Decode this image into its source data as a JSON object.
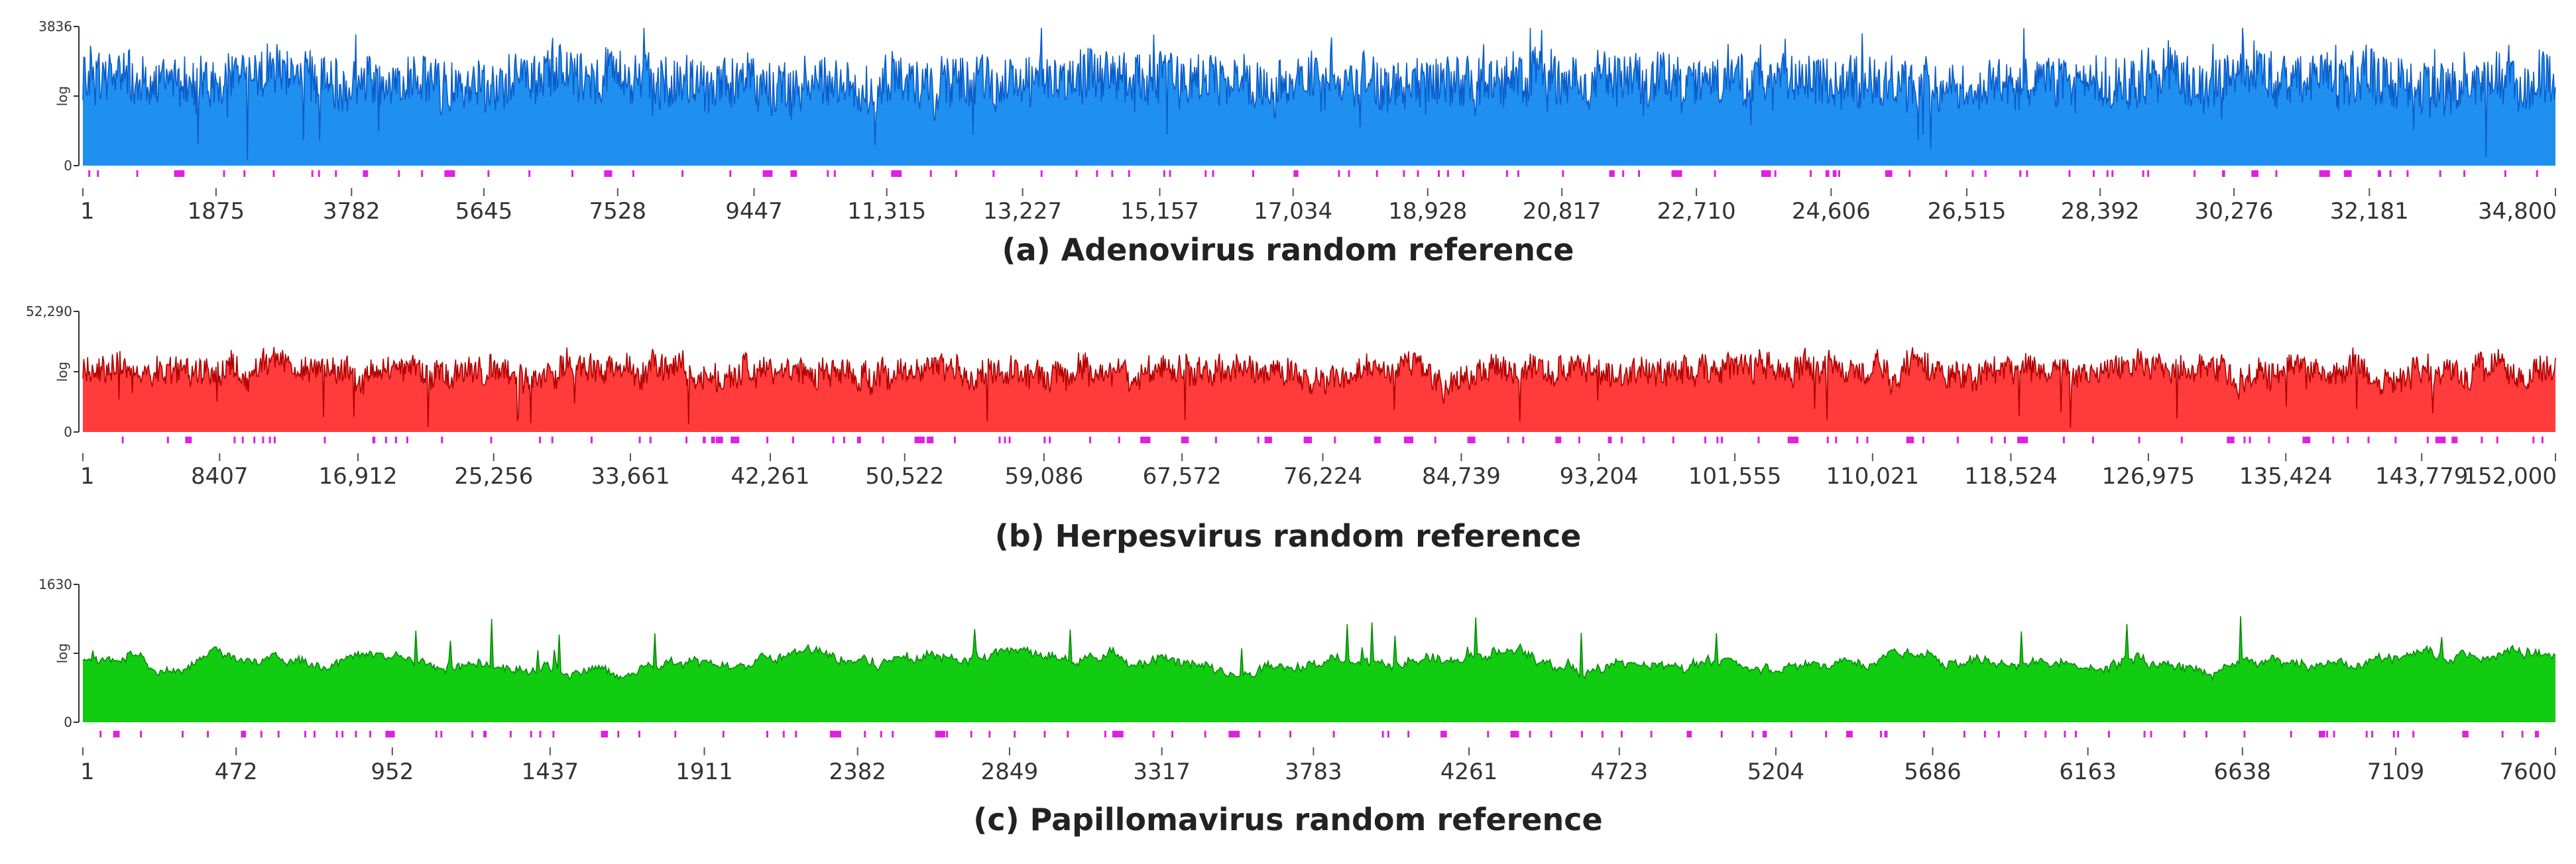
{
  "chart_data": [
    {
      "type": "area",
      "title": "(a) Adenovirus random reference",
      "ylabel": "log",
      "y_max_label": "3836",
      "y_min_label": "0",
      "y_scale": "log",
      "ylim": [
        0,
        3836
      ],
      "x_ticks": [
        1,
        1875,
        3782,
        5645,
        7528,
        9447,
        11315,
        13227,
        15157,
        17034,
        18928,
        20817,
        22710,
        24606,
        26515,
        28392,
        30276,
        32181,
        34800
      ],
      "x_tick_labels": [
        "1",
        "1875",
        "3782",
        "5645",
        "7528",
        "9447",
        "11,315",
        "13,227",
        "15,157",
        "17,034",
        "18,928",
        "20,817",
        "22,710",
        "24,606",
        "26,515",
        "28,392",
        "30,276",
        "32,181",
        "34,800"
      ],
      "xlim": [
        1,
        34800
      ],
      "series_color": "#1f8ff0",
      "line_color": "#0a5cc8",
      "marker_color": "#e020e0",
      "profile_style": "spiky",
      "coverage_base": 0.55,
      "coverage_variation": 0.17,
      "seed": 11
    },
    {
      "type": "area",
      "title": "(b) Herpesvirus random reference",
      "ylabel": "log",
      "y_max_label": "52,290",
      "y_min_label": "0",
      "y_scale": "log",
      "ylim": [
        0,
        52290
      ],
      "x_ticks": [
        1,
        8407,
        16912,
        25256,
        33661,
        42261,
        50522,
        59086,
        67572,
        76224,
        84739,
        93204,
        101555,
        110021,
        118524,
        126975,
        135424,
        143779,
        152000
      ],
      "x_tick_labels": [
        "1",
        "8407",
        "16,912",
        "25,256",
        "33,661",
        "42,261",
        "50,522",
        "59,086",
        "67,572",
        "76,224",
        "84,739",
        "93,204",
        "101,555",
        "110,021",
        "118,524",
        "126,975",
        "135,424",
        "143,779",
        "152,000"
      ],
      "xlim": [
        1,
        152000
      ],
      "series_color": "#ff3b3b",
      "line_color": "#b00000",
      "marker_color": "#e020e0",
      "profile_style": "dense",
      "coverage_base": 0.5,
      "coverage_variation": 0.12,
      "seed": 23
    },
    {
      "type": "area",
      "title": "(c) Papillomavirus random reference",
      "ylabel": "log",
      "y_max_label": "1630",
      "y_min_label": "0",
      "y_scale": "log",
      "ylim": [
        0,
        1630
      ],
      "x_ticks": [
        1,
        472,
        952,
        1437,
        1911,
        2382,
        2849,
        3317,
        3783,
        4261,
        4723,
        5204,
        5686,
        6163,
        6638,
        7109,
        7600
      ],
      "x_tick_labels": [
        "1",
        "472",
        "952",
        "1437",
        "1911",
        "2382",
        "2849",
        "3317",
        "3783",
        "4261",
        "4723",
        "5204",
        "5686",
        "6163",
        "6638",
        "7109",
        "7600"
      ],
      "xlim": [
        1,
        7600
      ],
      "series_color": "#11cc11",
      "line_color": "#0a8a0a",
      "marker_color": "#e020e0",
      "profile_style": "smooth",
      "coverage_base": 0.45,
      "coverage_variation": 0.15,
      "seed": 37
    }
  ]
}
